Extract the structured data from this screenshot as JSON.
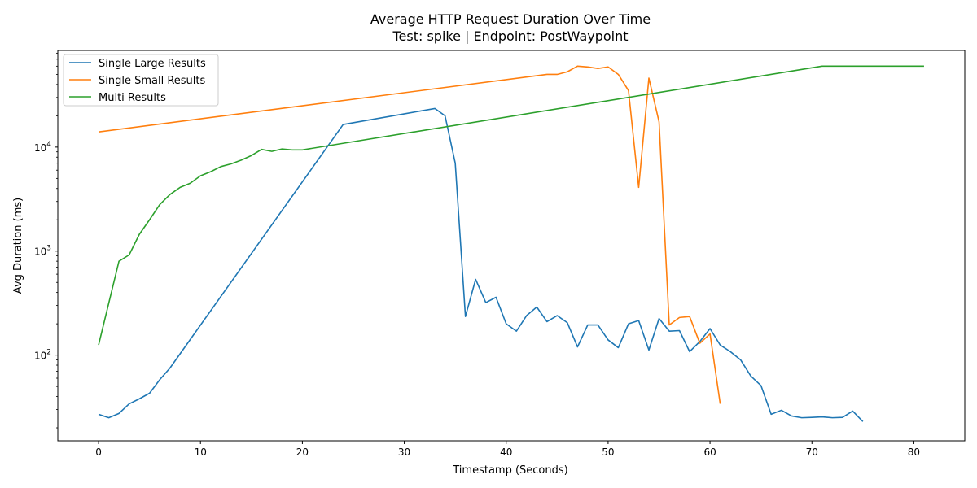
{
  "chart_data": {
    "type": "line",
    "title": "Average HTTP Request Duration Over Time",
    "subtitle": "Test: spike | Endpoint: PostWaypoint",
    "xlabel": "Timestamp (Seconds)",
    "ylabel": "Avg Duration (ms)",
    "xlim": [
      -4,
      85
    ],
    "ylim": [
      15,
      85000
    ],
    "yscale": "log",
    "grid": false,
    "legend_position": "upper-left",
    "x_ticks": [
      0,
      10,
      20,
      30,
      40,
      50,
      60,
      70,
      80
    ],
    "x_tick_labels": [
      "0",
      "10",
      "20",
      "30",
      "40",
      "50",
      "60",
      "70",
      "80"
    ],
    "y_ticks": [
      100,
      1000,
      10000
    ],
    "y_tick_labels": [
      {
        "base": "10",
        "exp": "2"
      },
      {
        "base": "10",
        "exp": "3"
      },
      {
        "base": "10",
        "exp": "4"
      }
    ],
    "series": [
      {
        "name": "Single Large Results",
        "color": "#1f77b4",
        "x": [
          0,
          1,
          2,
          3,
          4,
          5,
          6,
          7,
          24,
          33,
          34,
          35,
          36,
          37,
          38,
          39,
          40,
          41,
          42,
          43,
          44,
          45,
          46,
          47,
          48,
          49,
          50,
          51,
          52,
          53,
          54,
          55,
          56,
          57,
          58,
          59,
          60,
          61,
          62,
          63,
          64,
          65,
          66,
          67,
          68,
          69,
          70,
          71,
          72,
          73,
          74,
          75
        ],
        "y": [
          27,
          25,
          27.5,
          34,
          38,
          43,
          58,
          75,
          16500,
          23500,
          20000,
          7000,
          235,
          535,
          320,
          360,
          200,
          170,
          240,
          290,
          210,
          240,
          205,
          120,
          195,
          195,
          140,
          118,
          200,
          215,
          112,
          225,
          170,
          172,
          108,
          135,
          180,
          125,
          108,
          90,
          63,
          51,
          27,
          29.5,
          26,
          25,
          25.2,
          25.5,
          25,
          25.2,
          29,
          23
        ]
      },
      {
        "name": "Single Small Results",
        "color": "#ff7f0e",
        "x": [
          0,
          44,
          45,
          46,
          47,
          48,
          49,
          50,
          51,
          52,
          53,
          54,
          55,
          56,
          57,
          58,
          59,
          60,
          61
        ],
        "y": [
          14000,
          50000,
          50000,
          53000,
          60000,
          59000,
          57000,
          59000,
          50000,
          35000,
          4100,
          46000,
          17500,
          195,
          230,
          235,
          130,
          160,
          34
        ]
      },
      {
        "name": "Multi Results",
        "color": "#2ca02c",
        "x": [
          0,
          2,
          3,
          4,
          5,
          6,
          7,
          8,
          9,
          10,
          11,
          12,
          13,
          14,
          15,
          16,
          17,
          18,
          19,
          20,
          71,
          81
        ],
        "y": [
          125,
          800,
          920,
          1450,
          2000,
          2800,
          3500,
          4100,
          4500,
          5300,
          5800,
          6500,
          6900,
          7500,
          8300,
          9500,
          9100,
          9600,
          9400,
          9400,
          60000,
          60000
        ]
      }
    ]
  }
}
